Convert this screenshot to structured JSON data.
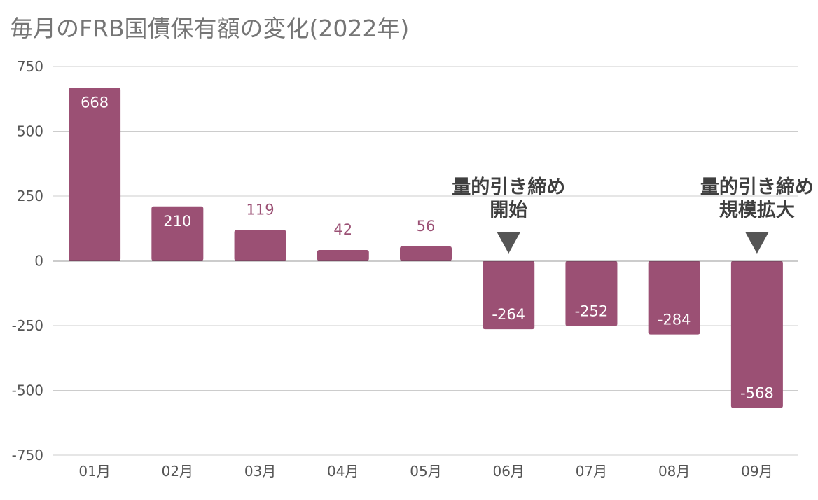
{
  "chart_data": {
    "type": "bar",
    "title": "毎月のFRB国債保有額の変化(2022年)",
    "xlabel": "",
    "ylabel": "",
    "categories": [
      "01月",
      "02月",
      "03月",
      "04月",
      "05月",
      "06月",
      "07月",
      "08月",
      "09月"
    ],
    "values": [
      668,
      210,
      119,
      42,
      56,
      -264,
      -252,
      -284,
      -568
    ],
    "value_labels": [
      "668",
      "210",
      "119",
      "42",
      "56",
      "-264",
      "-252",
      "-284",
      "-568"
    ],
    "ylim": [
      -750,
      750
    ],
    "yticks": [
      750,
      500,
      250,
      0,
      -250,
      -500,
      -750
    ],
    "ytick_labels": [
      "750",
      "500",
      "250",
      "0",
      "-250",
      "-500",
      "-750"
    ],
    "grid": true,
    "legend": "none",
    "bar_color": "#9b5074",
    "inside_label_color": "#ffffff",
    "outside_label_color": "#9b5074",
    "gridline_color": "#cccccc",
    "zero_line_color": "#333333",
    "title_color": "#757575",
    "annotations": [
      {
        "category": "06月",
        "lines": [
          "量的引き締め",
          "開始"
        ],
        "marker": "down-triangle"
      },
      {
        "category": "09月",
        "lines": [
          "量的引き締め",
          "規模拡大"
        ],
        "marker": "down-triangle"
      }
    ]
  }
}
